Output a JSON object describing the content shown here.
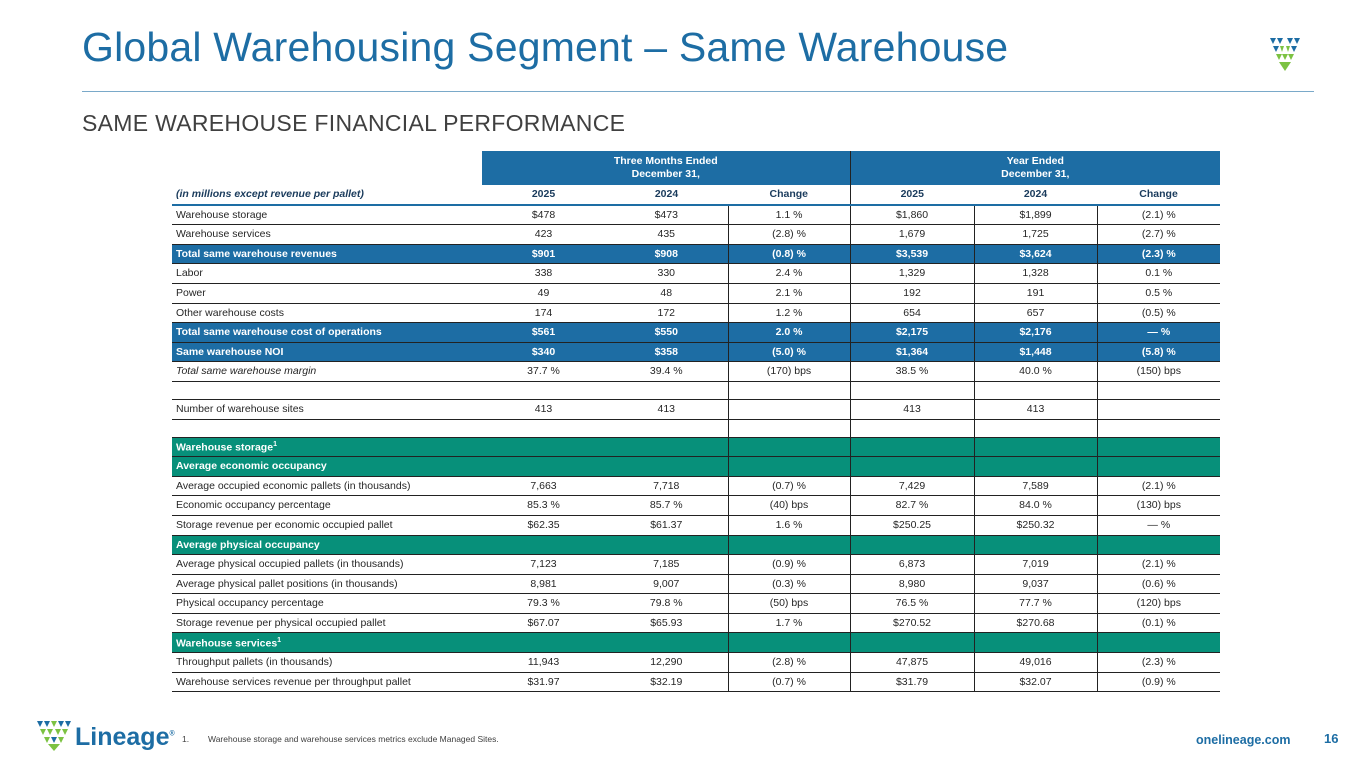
{
  "title": "Global Warehousing Segment – Same Warehouse",
  "subtitle": "SAME WAREHOUSE FINANCIAL PERFORMANCE",
  "header": {
    "three_months_l1": "Three Months Ended",
    "three_months_l2": "December 31,",
    "year_l1": "Year Ended",
    "year_l2": "December 31,",
    "units_label": "(in millions except revenue per pallet)",
    "columns": [
      "2025",
      "2024",
      "Change",
      "2025",
      "2024",
      "Change"
    ]
  },
  "rows": {
    "r0": {
      "label": "Warehouse storage",
      "v": [
        "$478",
        "$473",
        "1.1 %",
        "$1,860",
        "$1,899",
        "(2.1) %"
      ]
    },
    "r1": {
      "label": "Warehouse services",
      "v": [
        "423",
        "435",
        "(2.8) %",
        "1,679",
        "1,725",
        "(2.7) %"
      ]
    },
    "r2": {
      "label": "Total same warehouse revenues",
      "v": [
        "$901",
        "$908",
        "(0.8) %",
        "$3,539",
        "$3,624",
        "(2.3) %"
      ]
    },
    "r3": {
      "label": "Labor",
      "v": [
        "338",
        "330",
        "2.4 %",
        "1,329",
        "1,328",
        "0.1 %"
      ]
    },
    "r4": {
      "label": "Power",
      "v": [
        "49",
        "48",
        "2.1 %",
        "192",
        "191",
        "0.5 %"
      ]
    },
    "r5": {
      "label": "Other warehouse costs",
      "v": [
        "174",
        "172",
        "1.2 %",
        "654",
        "657",
        "(0.5) %"
      ]
    },
    "r6": {
      "label": "Total same warehouse cost of operations",
      "v": [
        "$561",
        "$550",
        "2.0 %",
        "$2,175",
        "$2,176",
        "— %"
      ]
    },
    "r7": {
      "label": "Same warehouse NOI",
      "v": [
        "$340",
        "$358",
        "(5.0) %",
        "$1,364",
        "$1,448",
        "(5.8) %"
      ]
    },
    "r8": {
      "label": "Total same warehouse margin",
      "v": [
        "37.7 %",
        "39.4 %",
        "(170) bps",
        "38.5 %",
        "40.0 %",
        "(150) bps"
      ]
    },
    "r9": {
      "label": "Number of warehouse sites",
      "v": [
        "413",
        "413",
        "",
        "413",
        "413",
        ""
      ]
    },
    "r10": {
      "label": "Warehouse storage",
      "sup": "1"
    },
    "r11": {
      "label": "Average economic occupancy"
    },
    "r12": {
      "label": "Average occupied economic pallets (in thousands)",
      "v": [
        "7,663",
        "7,718",
        "(0.7) %",
        "7,429",
        "7,589",
        "(2.1) %"
      ]
    },
    "r13": {
      "label": "Economic occupancy percentage",
      "v": [
        "85.3 %",
        "85.7 %",
        "(40) bps",
        "82.7 %",
        "84.0 %",
        "(130) bps"
      ]
    },
    "r14": {
      "label": "Storage revenue per economic occupied pallet",
      "v": [
        "$62.35",
        "$61.37",
        "1.6 %",
        "$250.25",
        "$250.32",
        "— %"
      ]
    },
    "r15": {
      "label": "Average physical occupancy"
    },
    "r16": {
      "label": "Average physical occupied pallets (in thousands)",
      "v": [
        "7,123",
        "7,185",
        "(0.9) %",
        "6,873",
        "7,019",
        "(2.1) %"
      ]
    },
    "r17": {
      "label": "Average physical pallet positions (in thousands)",
      "v": [
        "8,981",
        "9,007",
        "(0.3) %",
        "8,980",
        "9,037",
        "(0.6) %"
      ]
    },
    "r18": {
      "label": "Physical occupancy percentage",
      "v": [
        "79.3 %",
        "79.8 %",
        "(50) bps",
        "76.5 %",
        "77.7 %",
        "(120) bps"
      ]
    },
    "r19": {
      "label": "Storage revenue per physical occupied pallet",
      "v": [
        "$67.07",
        "$65.93",
        "1.7 %",
        "$270.52",
        "$270.68",
        "(0.1) %"
      ]
    },
    "r20": {
      "label": "Warehouse services",
      "sup": "1"
    },
    "r21": {
      "label": "Throughput pallets (in thousands)",
      "v": [
        "11,943",
        "12,290",
        "(2.8) %",
        "47,875",
        "49,016",
        "(2.3) %"
      ]
    },
    "r22": {
      "label": "Warehouse services revenue per throughput pallet",
      "v": [
        "$31.97",
        "$32.19",
        "(0.7) %",
        "$31.79",
        "$32.07",
        "(0.9) %"
      ]
    }
  },
  "footer": {
    "brand": "Lineage",
    "registered": "®",
    "footnote_num": "1.",
    "footnote_text": "Warehouse storage and warehouse services metrics exclude Managed Sites.",
    "url": "onelineage.com",
    "page_number": "16"
  },
  "colors": {
    "brand_blue": "#1d6da4",
    "teal": "#07907a",
    "green": "#7cc242"
  }
}
